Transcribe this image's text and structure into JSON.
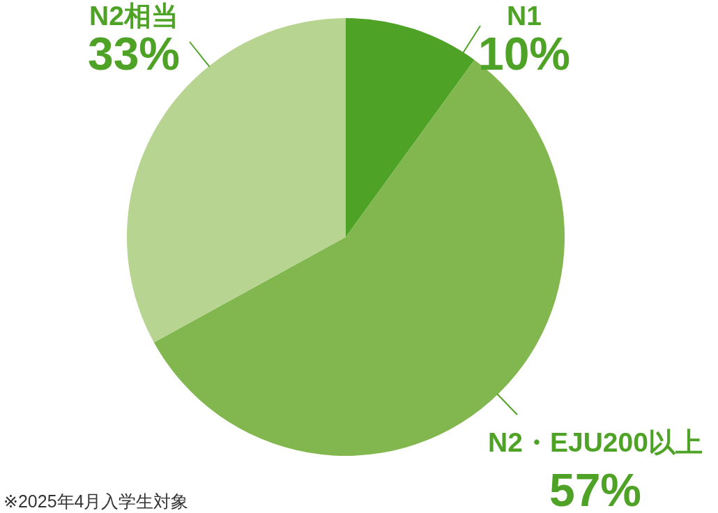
{
  "chart_data": {
    "type": "pie",
    "categories": [
      "N1",
      "N2・EJU200以上",
      "N2相当"
    ],
    "values": [
      10,
      57,
      33
    ],
    "colors": [
      "#4ea225",
      "#82b74f",
      "#b8d491"
    ],
    "value_labels": [
      "10%",
      "57%",
      "33%"
    ],
    "annotations": [
      "※2025年4月入学生対象"
    ]
  }
}
